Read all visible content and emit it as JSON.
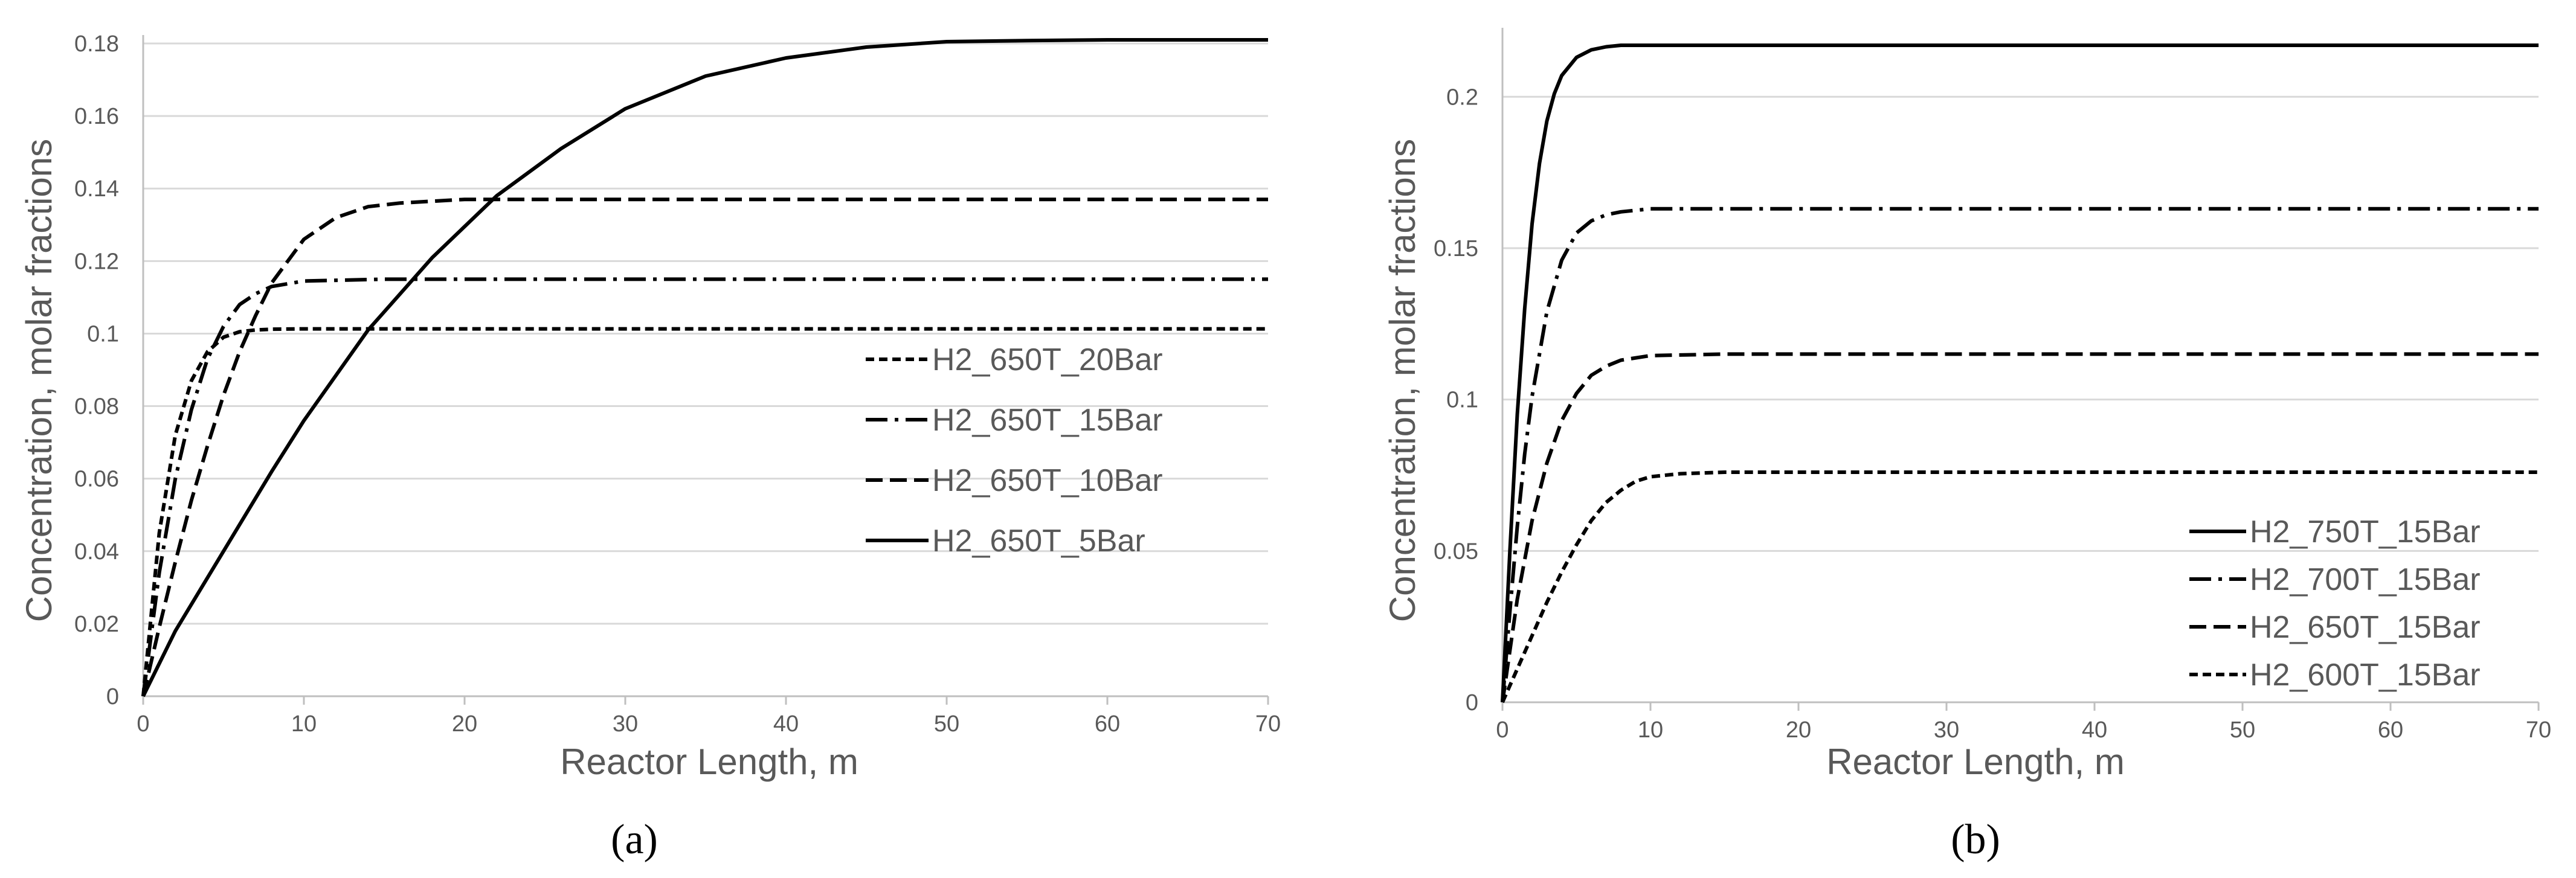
{
  "chart_data": [
    {
      "type": "line",
      "panel_label": "(a)",
      "title": "",
      "xlabel": "Reactor Length, m",
      "ylabel": "Concentration, molar  fractions",
      "xlim": [
        0,
        70
      ],
      "ylim": [
        0,
        0.18
      ],
      "x_ticks": [
        0,
        10,
        20,
        30,
        40,
        50,
        60,
        70
      ],
      "y_ticks": [
        0,
        0.02,
        0.04,
        0.06,
        0.08,
        0.1,
        0.12,
        0.14,
        0.16,
        0.18
      ],
      "x_tick_labels": [
        "0",
        "10",
        "20",
        "30",
        "40",
        "50",
        "60",
        "70"
      ],
      "y_tick_labels": [
        "0",
        "0.02",
        "0.04",
        "0.06",
        "0.08",
        "0.1",
        "0.12",
        "0.14",
        "0.16",
        "0.18"
      ],
      "grid": "horizontal",
      "legend_position": "middle-right",
      "series": [
        {
          "name": "H2_650T_20Bar",
          "dash": "short-dash",
          "x": [
            0,
            1,
            2,
            3,
            4,
            5,
            6,
            7,
            8,
            10,
            15,
            20,
            30,
            40,
            50,
            60,
            70
          ],
          "y": [
            0,
            0.045,
            0.072,
            0.087,
            0.095,
            0.099,
            0.1005,
            0.101,
            0.1012,
            0.1013,
            0.1013,
            0.1013,
            0.1013,
            0.1013,
            0.1013,
            0.1013,
            0.1013
          ]
        },
        {
          "name": "H2_650T_15Bar",
          "dash": "dash-dot",
          "x": [
            0,
            1,
            2,
            3,
            4,
            5,
            6,
            7,
            8,
            10,
            15,
            20,
            30,
            40,
            50,
            60,
            70
          ],
          "y": [
            0,
            0.034,
            0.06,
            0.079,
            0.093,
            0.102,
            0.108,
            0.111,
            0.113,
            0.1145,
            0.115,
            0.115,
            0.115,
            0.115,
            0.115,
            0.115,
            0.115
          ]
        },
        {
          "name": "H2_650T_10Bar",
          "dash": "long-dash",
          "x": [
            0,
            1,
            2,
            3,
            4,
            5,
            6,
            7,
            8,
            10,
            12,
            14,
            16,
            18,
            20,
            25,
            30,
            40,
            50,
            60,
            70
          ],
          "y": [
            0,
            0.019,
            0.037,
            0.054,
            0.069,
            0.083,
            0.095,
            0.105,
            0.114,
            0.126,
            0.132,
            0.135,
            0.136,
            0.1365,
            0.137,
            0.137,
            0.137,
            0.137,
            0.137,
            0.137,
            0.137
          ]
        },
        {
          "name": "H2_650T_5Bar",
          "dash": "solid",
          "x": [
            0,
            2,
            5,
            8,
            10,
            14,
            18,
            22,
            26,
            30,
            35,
            40,
            45,
            50,
            55,
            60,
            65,
            70
          ],
          "y": [
            0,
            0.018,
            0.04,
            0.062,
            0.076,
            0.101,
            0.121,
            0.138,
            0.151,
            0.162,
            0.171,
            0.176,
            0.179,
            0.1805,
            0.1808,
            0.181,
            0.181,
            0.181
          ]
        }
      ]
    },
    {
      "type": "line",
      "panel_label": "(b)",
      "title": "",
      "xlabel": "Reactor Length, m",
      "ylabel": "Concentration, molar  fractions",
      "xlim": [
        0,
        70
      ],
      "ylim": [
        0,
        0.22
      ],
      "x_ticks": [
        0,
        10,
        20,
        30,
        40,
        50,
        60,
        70
      ],
      "y_ticks": [
        0,
        0.05,
        0.1,
        0.15,
        0.2
      ],
      "x_tick_labels": [
        "0",
        "10",
        "20",
        "30",
        "40",
        "50",
        "60",
        "70"
      ],
      "y_tick_labels": [
        "0",
        "0.05",
        "0.1",
        "0.15",
        "0.2"
      ],
      "grid": "horizontal",
      "legend_position": "bottom-right",
      "series": [
        {
          "name": "H2_750T_15Bar",
          "dash": "solid",
          "x": [
            0,
            0.5,
            1,
            1.5,
            2,
            2.5,
            3,
            3.5,
            4,
            5,
            6,
            7,
            8,
            10,
            20,
            40,
            70
          ],
          "y": [
            0,
            0.05,
            0.095,
            0.13,
            0.158,
            0.178,
            0.192,
            0.201,
            0.207,
            0.213,
            0.2155,
            0.2165,
            0.217,
            0.217,
            0.217,
            0.217,
            0.217
          ]
        },
        {
          "name": "H2_700T_15Bar",
          "dash": "dash-dot",
          "x": [
            0,
            0.5,
            1,
            1.5,
            2,
            3,
            4,
            5,
            6,
            7,
            8,
            10,
            20,
            40,
            70
          ],
          "y": [
            0,
            0.03,
            0.058,
            0.082,
            0.101,
            0.129,
            0.146,
            0.155,
            0.159,
            0.161,
            0.162,
            0.163,
            0.163,
            0.163,
            0.163
          ]
        },
        {
          "name": "H2_650T_15Bar",
          "dash": "long-dash",
          "x": [
            0,
            1,
            2,
            3,
            4,
            5,
            6,
            7,
            8,
            10,
            15,
            20,
            40,
            70
          ],
          "y": [
            0,
            0.034,
            0.06,
            0.079,
            0.093,
            0.102,
            0.108,
            0.111,
            0.113,
            0.1145,
            0.115,
            0.115,
            0.115,
            0.115
          ]
        },
        {
          "name": "H2_600T_15Bar",
          "dash": "short-dash",
          "x": [
            0,
            1,
            2,
            3,
            4,
            5,
            6,
            7,
            8,
            9,
            10,
            12,
            15,
            20,
            30,
            40,
            70
          ],
          "y": [
            0,
            0.011,
            0.022,
            0.033,
            0.043,
            0.052,
            0.06,
            0.066,
            0.07,
            0.073,
            0.0745,
            0.0755,
            0.076,
            0.076,
            0.076,
            0.076,
            0.076
          ]
        }
      ]
    }
  ]
}
